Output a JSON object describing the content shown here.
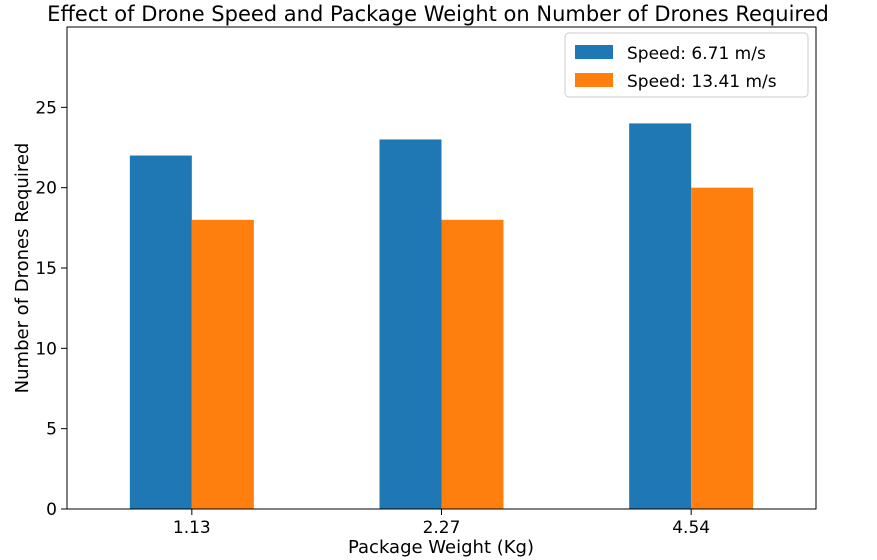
{
  "chart_data": {
    "type": "bar",
    "title": "Effect of Drone Speed and Package Weight on Number of Drones Required",
    "xlabel": "Package Weight (Kg)",
    "ylabel": "Number of Drones Required",
    "categories": [
      "1.13",
      "2.27",
      "4.54"
    ],
    "series": [
      {
        "name": "Speed: 6.71 m/s",
        "values": [
          22,
          23,
          24
        ],
        "color": "#1f77b4"
      },
      {
        "name": "Speed: 13.41 m/s",
        "values": [
          18,
          18,
          20
        ],
        "color": "#ff7f0e"
      }
    ],
    "ylim": [
      0,
      30
    ],
    "yticks": [
      0,
      5,
      10,
      15,
      20,
      25
    ],
    "grid": false,
    "legend": "top-right"
  }
}
